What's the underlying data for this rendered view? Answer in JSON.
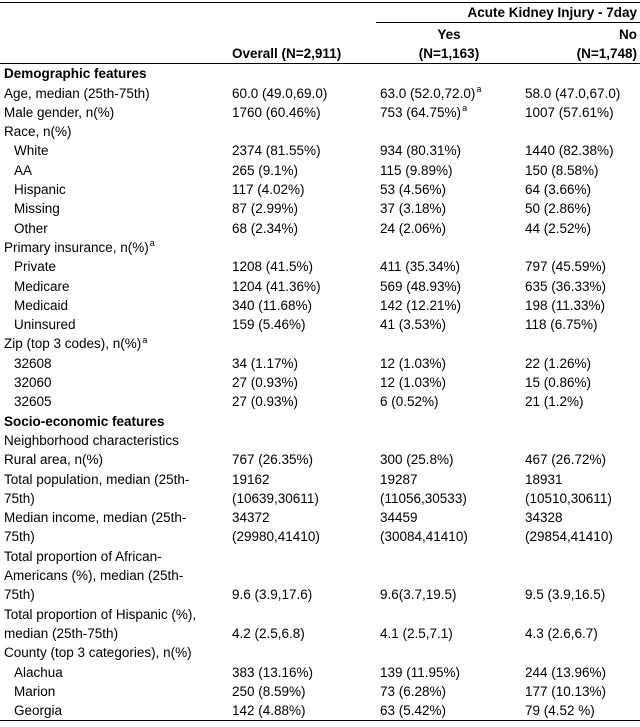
{
  "table": {
    "header": {
      "group": "Acute Kidney Injury - 7day",
      "overall": "Overall (N=2,911)",
      "yes": [
        "Yes",
        "(N=1,163)"
      ],
      "no": [
        "No",
        "(N=1,748)"
      ]
    },
    "sections": [
      {
        "title": "Demographic features",
        "rows": [
          {
            "label": "Age, median (25th-75th)",
            "cells": [
              "60.0 (49.0,69.0)",
              {
                "text": "63.0 (52.0,72.0)",
                "sup": "a"
              },
              "58.0 (47.0,67.0)"
            ]
          },
          {
            "label": "Male gender, n(%)",
            "cells": [
              "1760 (60.46%)",
              {
                "text": "753 (64.75%)",
                "sup": "a"
              },
              "1007 (57.61%)"
            ]
          },
          {
            "label": "Race, n(%)",
            "items": [
              {
                "label": "White",
                "cells": [
                  "2374 (81.55%)",
                  "934 (80.31%)",
                  "1440 (82.38%)"
                ]
              },
              {
                "label": "AA",
                "cells": [
                  "265 (9.1%)",
                  "115 (9.89%)",
                  "150 (8.58%)"
                ]
              },
              {
                "label": "Hispanic",
                "cells": [
                  "117 (4.02%)",
                  "53 (4.56%)",
                  "64 (3.66%)"
                ]
              },
              {
                "label": "Missing",
                "cells": [
                  "87 (2.99%)",
                  "37 (3.18%)",
                  "50 (2.86%)"
                ]
              },
              {
                "label": "Other",
                "cells": [
                  "68 (2.34%)",
                  "24 (2.06%)",
                  "44 (2.52%)"
                ]
              }
            ]
          },
          {
            "label": {
              "text": "Primary insurance, n(%)",
              "sup": "a"
            },
            "items": [
              {
                "label": "Private",
                "cells": [
                  "1208 (41.5%)",
                  "411 (35.34%)",
                  "797 (45.59%)"
                ]
              },
              {
                "label": "Medicare",
                "cells": [
                  "1204 (41.36%)",
                  "569 (48.93%)",
                  "635 (36.33%)"
                ]
              },
              {
                "label": "Medicaid",
                "cells": [
                  "340 (11.68%)",
                  "142 (12.21%)",
                  "198 (11.33%)"
                ]
              },
              {
                "label": "Uninsured",
                "cells": [
                  "159 (5.46%)",
                  "41 (3.53%)",
                  "118 (6.75%)"
                ]
              }
            ]
          },
          {
            "label": {
              "text": "Zip (top 3 codes), n(%)",
              "sup": "a"
            },
            "items": [
              {
                "label": "32608",
                "cells": [
                  "34 (1.17%)",
                  "12 (1.03%)",
                  "22 (1.26%)"
                ]
              },
              {
                "label": "32060",
                "cells": [
                  "27 (0.93%)",
                  "12 (1.03%)",
                  "15 (0.86%)"
                ]
              },
              {
                "label": "32605",
                "cells": [
                  "27 (0.93%)",
                  "6 (0.52%)",
                  "21 (1.2%)"
                ]
              }
            ]
          }
        ]
      },
      {
        "title": "Socio-economic features",
        "rows": [
          {
            "label": "Neighborhood characteristics"
          },
          {
            "label": "Rural area, n(%)",
            "cells": [
              "767 (26.35%)",
              "300 (25.8%)",
              "467 (26.72%)"
            ]
          },
          {
            "label": [
              "Total population, median (25th-",
              "75th)"
            ],
            "cells": [
              [
                "19162",
                "(10639,30611)"
              ],
              [
                "19287",
                "(11056,30533)"
              ],
              [
                "18931",
                "(10510,30611)"
              ]
            ]
          },
          {
            "label": [
              "Median income, median (25th-",
              "75th)"
            ],
            "cells": [
              [
                "34372",
                "(29980,41410)"
              ],
              [
                "34459",
                "(30084,41410)"
              ],
              [
                "34328",
                "(29854,41410)"
              ]
            ]
          },
          {
            "label": [
              "Total proportion of African-",
              "Americans (%), median (25th-",
              "75th)"
            ],
            "cells": [
              "9.6 (3.9,17.6)",
              "9.6(3.7,19.5)",
              "9.5 (3.9,16.5)"
            ]
          },
          {
            "label": [
              "Total proportion of Hispanic (%),",
              "median (25th-75th)"
            ],
            "cells": [
              "4.2 (2.5,6.8)",
              "4.1 (2.5,7.1)",
              "4.3 (2.6,6.7)"
            ]
          },
          {
            "label": "County (top 3 categories), n(%)",
            "items": [
              {
                "label": "Alachua",
                "cells": [
                  "383 (13.16%)",
                  "139 (11.95%)",
                  "244 (13.96%)"
                ]
              },
              {
                "label": "Marion",
                "cells": [
                  "250 (8.59%)",
                  "73 (6.28%)",
                  "177 (10.13%)"
                ]
              },
              {
                "label": "Georgia",
                "cells": [
                  "142 (4.88%)",
                  "63 (5.42%)",
                  "79 (4.52 %)"
                ]
              }
            ]
          }
        ]
      }
    ]
  }
}
